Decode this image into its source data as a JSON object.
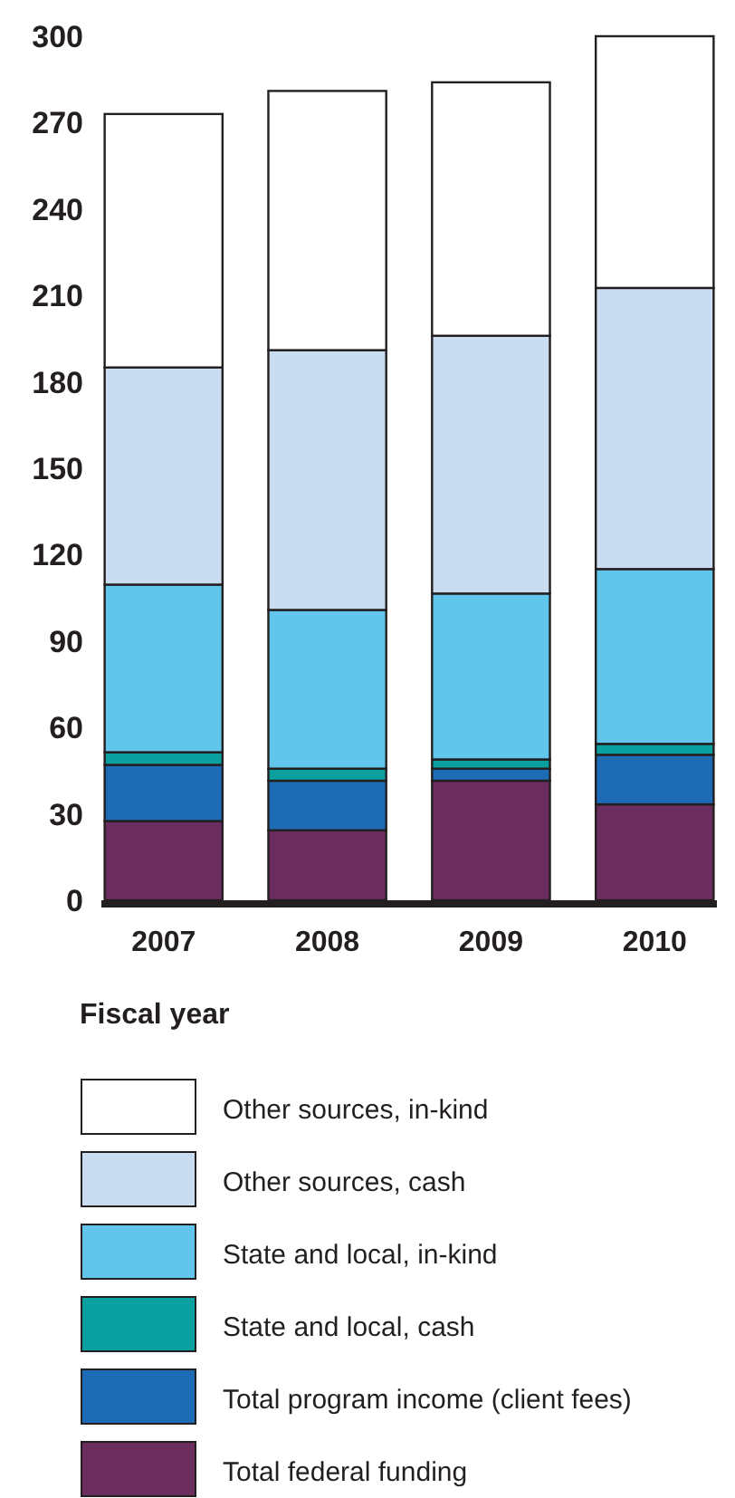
{
  "chart_data": {
    "type": "bar",
    "stacked": true,
    "xlabel": "Fiscal year",
    "categories": [
      "2007",
      "2008",
      "2009",
      "2010"
    ],
    "ylim": [
      0,
      300
    ],
    "yticks": [
      0,
      30,
      60,
      90,
      120,
      150,
      180,
      210,
      240,
      270,
      300
    ],
    "legend": "bottom",
    "series": [
      {
        "name": "Total federal funding",
        "color": "#6b2c5e",
        "values": [
          27.5,
          24.3,
          41.5,
          33.3
        ]
      },
      {
        "name": "Total program income (client fees)",
        "color": "#1e6bb5",
        "values": [
          19.5,
          17.2,
          4.2,
          17.2
        ]
      },
      {
        "name": "State and local, cash",
        "color": "#0aa0a0",
        "values": [
          4.4,
          4.2,
          3.2,
          3.8
        ]
      },
      {
        "name": "State and local, in-kind",
        "color": "#62c5ec",
        "values": [
          58.2,
          55.1,
          57.6,
          60.7
        ]
      },
      {
        "name": "Other sources, cash",
        "color": "#c9dcf0",
        "values": [
          75.4,
          90.2,
          89.5,
          97.6
        ]
      },
      {
        "name": "Other sources, in-kind",
        "color": "#ffffff",
        "values": [
          88,
          90,
          88,
          87.4
        ]
      }
    ]
  }
}
